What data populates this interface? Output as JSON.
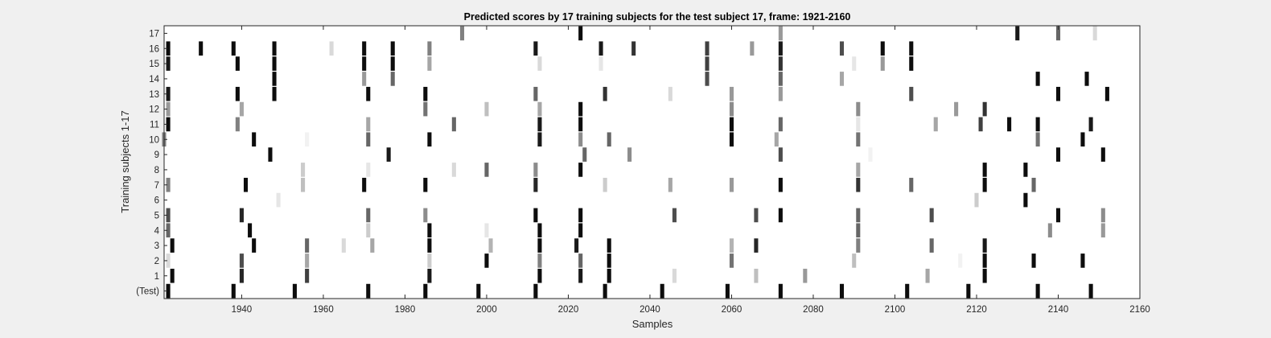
{
  "chart_data": {
    "type": "heatmap",
    "title": "Predicted scores by 17 training subjects for the test subject 17, frame: 1921-2160",
    "xlabel": "Samples",
    "ylabel": "Training subjects 1-17",
    "xlim": [
      1921,
      2160
    ],
    "x_ticks": [
      1940,
      1960,
      1980,
      2000,
      2020,
      2040,
      2060,
      2080,
      2100,
      2120,
      2140,
      2160
    ],
    "y_ticks": [
      "17",
      "16",
      "15",
      "14",
      "13",
      "12",
      "11",
      "10",
      "9",
      "8",
      "7",
      "6",
      "5",
      "4",
      "3",
      "2",
      "1",
      "(Test)"
    ],
    "colormap": "gray (0 = white, 1 = black)",
    "background": "#ffffff",
    "rows": [
      {
        "name": "17",
        "cells": [
          [
            1994,
            0.5
          ],
          [
            2023,
            0.95
          ],
          [
            2072,
            0.4
          ],
          [
            2130,
            0.9
          ],
          [
            2140,
            0.6
          ],
          [
            2149,
            0.15
          ]
        ]
      },
      {
        "name": "16",
        "cells": [
          [
            1922,
            0.95
          ],
          [
            1930,
            0.95
          ],
          [
            1938,
            0.95
          ],
          [
            1948,
            0.95
          ],
          [
            1962,
            0.15
          ],
          [
            1970,
            0.95
          ],
          [
            1977,
            0.95
          ],
          [
            1986,
            0.5
          ],
          [
            2012,
            0.9
          ],
          [
            2028,
            0.9
          ],
          [
            2036,
            0.8
          ],
          [
            2054,
            0.75
          ],
          [
            2065,
            0.4
          ],
          [
            2072,
            0.9
          ],
          [
            2087,
            0.7
          ],
          [
            2097,
            0.95
          ],
          [
            2104,
            0.95
          ]
        ]
      },
      {
        "name": "15",
        "cells": [
          [
            1922,
            0.9
          ],
          [
            1939,
            0.95
          ],
          [
            1948,
            0.95
          ],
          [
            1970,
            0.95
          ],
          [
            1977,
            0.95
          ],
          [
            1986,
            0.35
          ],
          [
            2013,
            0.15
          ],
          [
            2028,
            0.1
          ],
          [
            2054,
            0.75
          ],
          [
            2072,
            0.8
          ],
          [
            2090,
            0.1
          ],
          [
            2097,
            0.4
          ],
          [
            2104,
            0.95
          ]
        ]
      },
      {
        "name": "14",
        "cells": [
          [
            1948,
            0.95
          ],
          [
            1970,
            0.4
          ],
          [
            1977,
            0.6
          ],
          [
            2054,
            0.7
          ],
          [
            2072,
            0.6
          ],
          [
            2087,
            0.35
          ],
          [
            2135,
            0.95
          ],
          [
            2147,
            0.95
          ]
        ]
      },
      {
        "name": "13",
        "cells": [
          [
            1922,
            0.9
          ],
          [
            1939,
            0.95
          ],
          [
            1948,
            0.95
          ],
          [
            1971,
            0.95
          ],
          [
            1985,
            0.95
          ],
          [
            2012,
            0.6
          ],
          [
            2029,
            0.8
          ],
          [
            2045,
            0.15
          ],
          [
            2060,
            0.4
          ],
          [
            2072,
            0.4
          ],
          [
            2104,
            0.7
          ],
          [
            2140,
            0.95
          ],
          [
            2152,
            0.95
          ]
        ]
      },
      {
        "name": "12",
        "cells": [
          [
            1922,
            0.4
          ],
          [
            1940,
            0.35
          ],
          [
            1985,
            0.55
          ],
          [
            2000,
            0.25
          ],
          [
            2013,
            0.35
          ],
          [
            2023,
            0.95
          ],
          [
            2060,
            0.45
          ],
          [
            2091,
            0.45
          ],
          [
            2115,
            0.4
          ],
          [
            2122,
            0.8
          ]
        ]
      },
      {
        "name": "11",
        "cells": [
          [
            1922,
            0.95
          ],
          [
            1939,
            0.5
          ],
          [
            1971,
            0.35
          ],
          [
            1992,
            0.6
          ],
          [
            2013,
            0.9
          ],
          [
            2023,
            0.95
          ],
          [
            2060,
            0.95
          ],
          [
            2072,
            0.6
          ],
          [
            2091,
            0.1
          ],
          [
            2110,
            0.35
          ],
          [
            2121,
            0.75
          ],
          [
            2128,
            0.95
          ],
          [
            2135,
            0.95
          ],
          [
            2148,
            0.9
          ]
        ]
      },
      {
        "name": "10",
        "cells": [
          [
            1921,
            0.5
          ],
          [
            1943,
            0.95
          ],
          [
            1956,
            0.05
          ],
          [
            1971,
            0.6
          ],
          [
            1986,
            0.95
          ],
          [
            2013,
            0.9
          ],
          [
            2023,
            0.45
          ],
          [
            2030,
            0.6
          ],
          [
            2060,
            0.95
          ],
          [
            2071,
            0.35
          ],
          [
            2091,
            0.55
          ],
          [
            2135,
            0.55
          ],
          [
            2146,
            0.95
          ]
        ]
      },
      {
        "name": "9",
        "cells": [
          [
            1947,
            0.95
          ],
          [
            1976,
            0.9
          ],
          [
            2024,
            0.6
          ],
          [
            2035,
            0.45
          ],
          [
            2072,
            0.7
          ],
          [
            2094,
            0.05
          ],
          [
            2140,
            0.95
          ],
          [
            2151,
            0.95
          ]
        ]
      },
      {
        "name": "8",
        "cells": [
          [
            1955,
            0.2
          ],
          [
            1971,
            0.1
          ],
          [
            1992,
            0.15
          ],
          [
            2000,
            0.6
          ],
          [
            2012,
            0.45
          ],
          [
            2023,
            0.95
          ],
          [
            2091,
            0.35
          ],
          [
            2122,
            0.95
          ],
          [
            2132,
            0.95
          ]
        ]
      },
      {
        "name": "7",
        "cells": [
          [
            1922,
            0.5
          ],
          [
            1941,
            0.95
          ],
          [
            1955,
            0.25
          ],
          [
            1970,
            0.95
          ],
          [
            1985,
            0.95
          ],
          [
            2012,
            0.85
          ],
          [
            2029,
            0.2
          ],
          [
            2045,
            0.35
          ],
          [
            2060,
            0.4
          ],
          [
            2072,
            0.95
          ],
          [
            2091,
            0.8
          ],
          [
            2104,
            0.6
          ],
          [
            2122,
            0.95
          ],
          [
            2134,
            0.6
          ]
        ]
      },
      {
        "name": "6",
        "cells": [
          [
            1949,
            0.1
          ],
          [
            2120,
            0.2
          ],
          [
            2132,
            0.95
          ]
        ]
      },
      {
        "name": "5",
        "cells": [
          [
            1922,
            0.7
          ],
          [
            1940,
            0.85
          ],
          [
            1971,
            0.6
          ],
          [
            1985,
            0.45
          ],
          [
            2012,
            0.95
          ],
          [
            2023,
            0.95
          ],
          [
            2046,
            0.7
          ],
          [
            2066,
            0.7
          ],
          [
            2072,
            0.95
          ],
          [
            2091,
            0.6
          ],
          [
            2109,
            0.7
          ],
          [
            2140,
            0.95
          ],
          [
            2151,
            0.45
          ]
        ]
      },
      {
        "name": "4",
        "cells": [
          [
            1922,
            0.6
          ],
          [
            1942,
            0.95
          ],
          [
            1971,
            0.2
          ],
          [
            1986,
            0.95
          ],
          [
            2000,
            0.1
          ],
          [
            2013,
            0.95
          ],
          [
            2023,
            0.95
          ],
          [
            2091,
            0.6
          ],
          [
            2138,
            0.45
          ],
          [
            2151,
            0.4
          ]
        ]
      },
      {
        "name": "3",
        "cells": [
          [
            1923,
            0.95
          ],
          [
            1943,
            0.95
          ],
          [
            1956,
            0.6
          ],
          [
            1965,
            0.15
          ],
          [
            1972,
            0.35
          ],
          [
            1986,
            0.95
          ],
          [
            2001,
            0.3
          ],
          [
            2013,
            0.95
          ],
          [
            2022,
            0.9
          ],
          [
            2030,
            0.95
          ],
          [
            2060,
            0.3
          ],
          [
            2066,
            0.85
          ],
          [
            2091,
            0.5
          ],
          [
            2109,
            0.6
          ],
          [
            2122,
            0.9
          ]
        ]
      },
      {
        "name": "2",
        "cells": [
          [
            1922,
            0.15
          ],
          [
            1940,
            0.7
          ],
          [
            1956,
            0.35
          ],
          [
            1986,
            0.2
          ],
          [
            2000,
            0.95
          ],
          [
            2013,
            0.5
          ],
          [
            2023,
            0.6
          ],
          [
            2030,
            0.95
          ],
          [
            2060,
            0.55
          ],
          [
            2090,
            0.25
          ],
          [
            2116,
            0.05
          ],
          [
            2122,
            0.95
          ],
          [
            2134,
            0.95
          ],
          [
            2146,
            0.95
          ]
        ]
      },
      {
        "name": "1",
        "cells": [
          [
            1923,
            0.95
          ],
          [
            1940,
            0.85
          ],
          [
            1956,
            0.75
          ],
          [
            1986,
            0.9
          ],
          [
            2013,
            0.95
          ],
          [
            2023,
            0.9
          ],
          [
            2030,
            0.95
          ],
          [
            2046,
            0.15
          ],
          [
            2066,
            0.25
          ],
          [
            2078,
            0.4
          ],
          [
            2108,
            0.35
          ],
          [
            2122,
            0.95
          ]
        ]
      },
      {
        "name": "(Test)",
        "cells": [
          [
            1922,
            0.95
          ],
          [
            1938,
            0.95
          ],
          [
            1953,
            0.95
          ],
          [
            1971,
            0.95
          ],
          [
            1985,
            0.95
          ],
          [
            1998,
            0.95
          ],
          [
            2012,
            0.95
          ],
          [
            2029,
            0.95
          ],
          [
            2043,
            0.95
          ],
          [
            2059,
            0.95
          ],
          [
            2072,
            0.95
          ],
          [
            2087,
            0.95
          ],
          [
            2103,
            0.95
          ],
          [
            2118,
            0.95
          ],
          [
            2135,
            0.95
          ],
          [
            2148,
            0.95
          ]
        ]
      }
    ]
  }
}
